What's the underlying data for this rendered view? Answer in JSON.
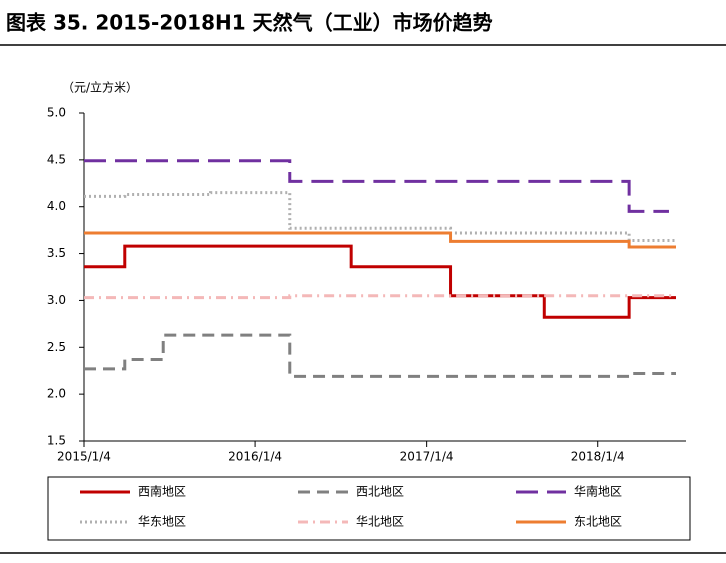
{
  "chart_data": {
    "type": "line",
    "step": "post",
    "title": "图表 35. 2015-2018H1 天然气（工业）市场价趋势",
    "y_label": "（元/立方米）",
    "xlim": [
      "2015/1/4",
      "2018/6/20"
    ],
    "xticks": [
      "2015/1/4",
      "2016/1/4",
      "2017/1/4",
      "2018/1/4"
    ],
    "ylim": [
      1.5,
      5
    ],
    "yticks": [
      {
        "value": 1.5,
        "label": "1.5"
      },
      {
        "value": 2,
        "label": "2.0"
      },
      {
        "value": 2.5,
        "label": "2.5"
      },
      {
        "value": 3,
        "label": "3.0"
      },
      {
        "value": 3.5,
        "label": "3.5"
      },
      {
        "value": 4,
        "label": "4.0"
      },
      {
        "value": 4.5,
        "label": "4.5"
      },
      {
        "value": 5,
        "label": "5.0"
      }
    ],
    "series": [
      {
        "name": "西南地区",
        "color": "#c00000",
        "dash": "solid",
        "x": [
          "2015/1/4",
          "2015/4/1",
          "2016/7/27",
          "2017/2/24",
          "2017/9/12",
          "2018/3/12",
          "2018/6/20"
        ],
        "values": [
          3.36,
          3.58,
          3.36,
          3.05,
          2.82,
          3.03,
          3.03
        ]
      },
      {
        "name": "西北地区",
        "color": "#808080",
        "dash": "dash",
        "x": [
          "2015/1/4",
          "2015/4/1",
          "2015/6/22",
          "2016/3/18",
          "2018/3/12",
          "2018/6/20"
        ],
        "values": [
          2.27,
          2.37,
          2.63,
          2.19,
          2.22,
          2.22
        ]
      },
      {
        "name": "华南地区",
        "color": "#7030a0",
        "dash": "longdash",
        "x": [
          "2015/1/4",
          "2016/3/18",
          "2018/3/12",
          "2018/6/5"
        ],
        "values": [
          4.49,
          4.27,
          3.95,
          3.95
        ]
      },
      {
        "name": "华东地区",
        "color": "#b0b0b0",
        "dash": "dot",
        "x": [
          "2015/1/4",
          "2015/4/1",
          "2015/10/1",
          "2016/3/18",
          "2017/2/24",
          "2018/3/12",
          "2018/6/20"
        ],
        "values": [
          4.11,
          4.13,
          4.15,
          3.77,
          3.72,
          3.64,
          3.64
        ]
      },
      {
        "name": "华北地区",
        "color": "#f4b8b8",
        "dash": "dashdot",
        "x": [
          "2015/1/4",
          "2016/3/18",
          "2018/6/20"
        ],
        "values": [
          3.03,
          3.05,
          3.05
        ]
      },
      {
        "name": "东北地区",
        "color": "#ed7d31",
        "dash": "solid",
        "x": [
          "2015/1/4",
          "2017/2/24",
          "2018/3/12",
          "2018/6/20"
        ],
        "values": [
          3.72,
          3.63,
          3.57,
          3.57
        ]
      }
    ]
  }
}
